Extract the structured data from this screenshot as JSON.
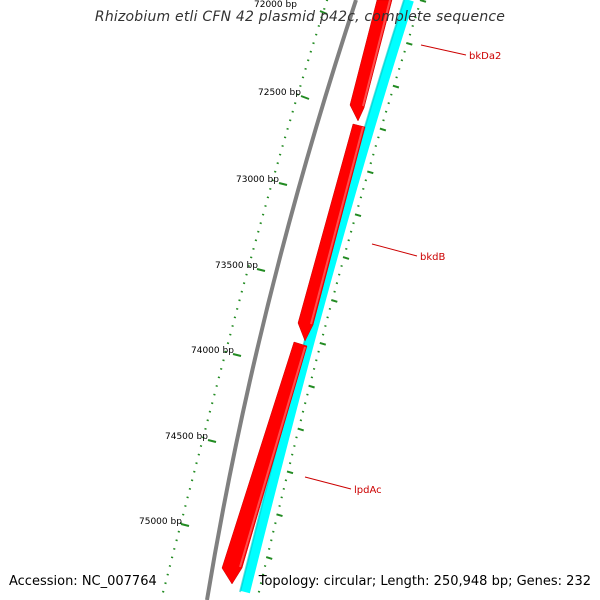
{
  "title": "Rhizobium etli CFN 42 plasmid p42c, complete sequence",
  "accession_text": "Accession: NC_007764",
  "summary_text": "Topology: circular; Length: 250,948 bp; Genes: 232",
  "colors": {
    "backbone": "#808080",
    "forward_gene": "#ff0000",
    "reverse_gene": "#00ffff",
    "tick": "#228b22",
    "label_line": "#cc0000",
    "label_text": "#cc0000"
  },
  "tick_labels": [
    "72000 bp",
    "72500 bp",
    "73000 bp",
    "73500 bp",
    "74000 bp",
    "74500 bp",
    "75000 bp"
  ],
  "genes": [
    {
      "name": "bkDa2",
      "strand": "forward"
    },
    {
      "name": "bkdB",
      "strand": "forward"
    },
    {
      "name": "lpdAc",
      "strand": "forward"
    }
  ]
}
